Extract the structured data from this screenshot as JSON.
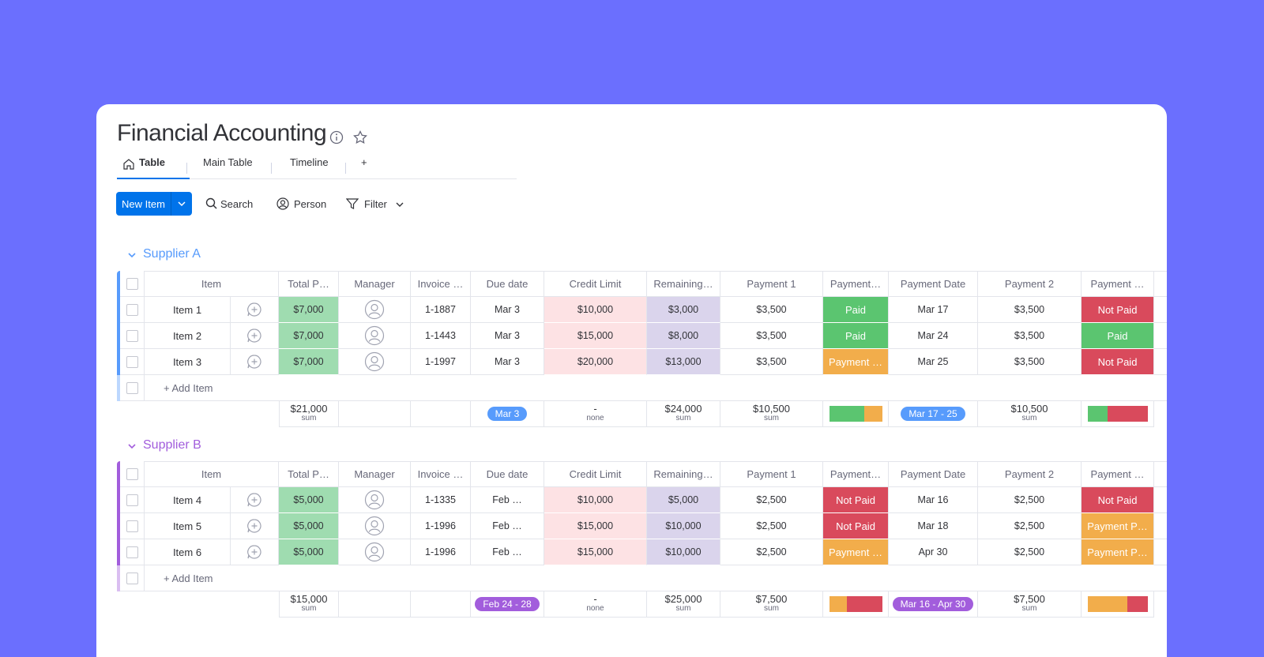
{
  "header": {
    "title": "Financial Accounting"
  },
  "tabs": [
    "Table",
    "Main Table",
    "Timeline",
    "+"
  ],
  "toolbar": {
    "new_item": "New Item",
    "search": "Search",
    "person": "Person",
    "filter": "Filter"
  },
  "columns": [
    "Item",
    "Total P…",
    "Manager",
    "Invoice …",
    "Due date",
    "Credit Limit",
    "Remaining…",
    "Payment 1",
    "Payment…",
    "Payment Date",
    "Payment 2",
    "Payment …"
  ],
  "groups": [
    {
      "name": "Supplier A",
      "color": "#579bfc",
      "rows": [
        {
          "item": "Item 1",
          "total": "$7,000",
          "invoice": "1-1887",
          "due": "Mar 3",
          "credit": "$10,000",
          "remaining": "$3,000",
          "payment1": "$3,500",
          "status1": {
            "label": "Paid",
            "color": "#5bc570"
          },
          "pay_date": "Mar 17",
          "payment2": "$3,500",
          "status2": {
            "label": "Not Paid",
            "color": "#d94a5c"
          }
        },
        {
          "item": "Item 2",
          "total": "$7,000",
          "invoice": "1-1443",
          "due": "Mar 3",
          "credit": "$15,000",
          "remaining": "$8,000",
          "payment1": "$3,500",
          "status1": {
            "label": "Paid",
            "color": "#5bc570"
          },
          "pay_date": "Mar 24",
          "payment2": "$3,500",
          "status2": {
            "label": "Paid",
            "color": "#5bc570"
          }
        },
        {
          "item": "Item 3",
          "total": "$7,000",
          "invoice": "1-1997",
          "due": "Mar 3",
          "credit": "$20,000",
          "remaining": "$13,000",
          "payment1": "$3,500",
          "status1": {
            "label": "Payment …",
            "color": "#f2ad4b"
          },
          "pay_date": "Mar 25",
          "payment2": "$3,500",
          "status2": {
            "label": "Not Paid",
            "color": "#d94a5c"
          }
        }
      ],
      "add_item": "+ Add Item",
      "summary": {
        "total": {
          "value": "$21,000",
          "label": "sum"
        },
        "due": "Mar 3",
        "credit": {
          "value": "-",
          "label": "none"
        },
        "remaining": {
          "value": "$24,000",
          "label": "sum"
        },
        "payment1": {
          "value": "$10,500",
          "label": "sum"
        },
        "status1": [
          {
            "color": "#5bc570",
            "count": 2
          },
          {
            "color": "#f2ad4b",
            "count": 1
          }
        ],
        "pay_date": "Mar 17 - 25",
        "payment2": {
          "value": "$10,500",
          "label": "sum"
        },
        "status2": [
          {
            "color": "#5bc570",
            "count": 1
          },
          {
            "color": "#d94a5c",
            "count": 2
          }
        ]
      }
    },
    {
      "name": "Supplier B",
      "color": "#a25ddc",
      "rows": [
        {
          "item": "Item 4",
          "total": "$5,000",
          "invoice": "1-1335",
          "due": "Feb …",
          "credit": "$10,000",
          "remaining": "$5,000",
          "payment1": "$2,500",
          "status1": {
            "label": "Not Paid",
            "color": "#d94a5c"
          },
          "pay_date": "Mar 16",
          "payment2": "$2,500",
          "status2": {
            "label": "Not Paid",
            "color": "#d94a5c"
          }
        },
        {
          "item": "Item 5",
          "total": "$5,000",
          "invoice": "1-1996",
          "due": "Feb …",
          "credit": "$15,000",
          "remaining": "$10,000",
          "payment1": "$2,500",
          "status1": {
            "label": "Not Paid",
            "color": "#d94a5c"
          },
          "pay_date": "Mar 18",
          "payment2": "$2,500",
          "status2": {
            "label": "Payment P…",
            "color": "#f2ad4b"
          }
        },
        {
          "item": "Item 6",
          "total": "$5,000",
          "invoice": "1-1996",
          "due": "Feb …",
          "credit": "$15,000",
          "remaining": "$10,000",
          "payment1": "$2,500",
          "status1": {
            "label": "Payment …",
            "color": "#f2ad4b"
          },
          "pay_date": "Apr 30",
          "payment2": "$2,500",
          "status2": {
            "label": "Payment P…",
            "color": "#f2ad4b"
          }
        }
      ],
      "add_item": "+ Add Item",
      "summary": {
        "total": {
          "value": "$15,000",
          "label": "sum"
        },
        "due": "Feb 24 - 28",
        "credit": {
          "value": "-",
          "label": "none"
        },
        "remaining": {
          "value": "$25,000",
          "label": "sum"
        },
        "payment1": {
          "value": "$7,500",
          "label": "sum"
        },
        "status1": [
          {
            "color": "#f2ad4b",
            "count": 1
          },
          {
            "color": "#d94a5c",
            "count": 2
          }
        ],
        "pay_date": "Mar 16 - Apr 30",
        "payment2": {
          "value": "$7,500",
          "label": "sum"
        },
        "status2": [
          {
            "color": "#f2ad4b",
            "count": 2
          },
          {
            "color": "#d94a5c",
            "count": 1
          }
        ]
      }
    }
  ]
}
